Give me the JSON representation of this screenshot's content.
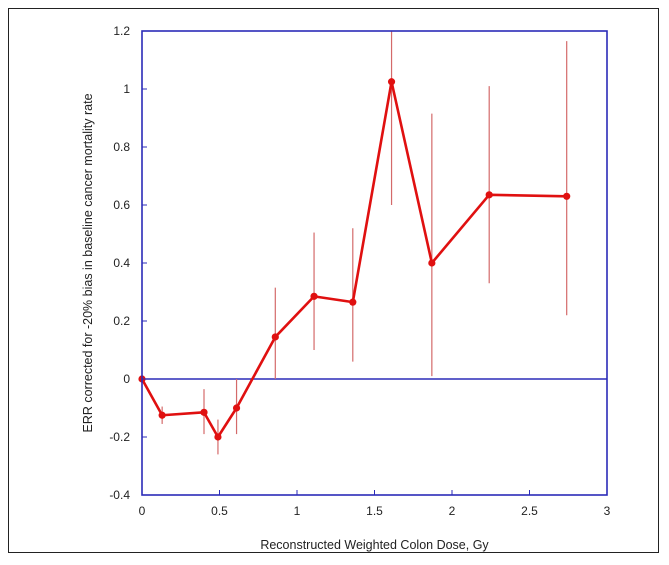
{
  "chart_data": {
    "type": "line",
    "title": "",
    "xlabel": "Reconstructed Weighted Colon Dose, Gy",
    "ylabel": "ERR corrected for -20% bias in baseline cancer mortality rate",
    "xlim": [
      0,
      3
    ],
    "ylim": [
      -0.4,
      1.2
    ],
    "xticks": [
      0,
      0.5,
      1,
      1.5,
      2,
      2.5,
      3
    ],
    "xtick_labels": [
      "0",
      "0.5",
      "1",
      "1.5",
      "2",
      "2.5",
      "3"
    ],
    "yticks": [
      -0.4,
      -0.2,
      0,
      0.2,
      0.4,
      0.6,
      0.8,
      1,
      1.2
    ],
    "ytick_labels": [
      "-0.4",
      "-0.2",
      "0",
      "0.2",
      "0.4",
      "0.6",
      "0.8",
      "1",
      "1.2"
    ],
    "grid": false,
    "reference_line_y": 0,
    "series": [
      {
        "x": [
          0,
          0.13,
          0.4,
          0.49,
          0.61,
          0.86,
          1.11,
          1.36,
          1.61,
          1.87,
          2.24,
          2.74
        ],
        "y": [
          0,
          -0.125,
          -0.115,
          -0.2,
          -0.1,
          0.145,
          0.285,
          0.265,
          1.025,
          0.4,
          0.635,
          0.63
        ],
        "error_low": [
          0,
          -0.155,
          -0.19,
          -0.26,
          -0.19,
          0,
          0.1,
          0.06,
          0.6,
          0.01,
          0.33,
          0.22
        ],
        "error_high": [
          0,
          -0.095,
          -0.035,
          -0.14,
          0,
          0.315,
          0.505,
          0.52,
          1.2,
          0.915,
          1.01,
          1.165
        ]
      }
    ],
    "colors": {
      "plot_border": "#2b2bb8",
      "zero_line": "#2b2bb8",
      "series_line": "#e01010",
      "error_bars": "#d46a6a"
    }
  }
}
